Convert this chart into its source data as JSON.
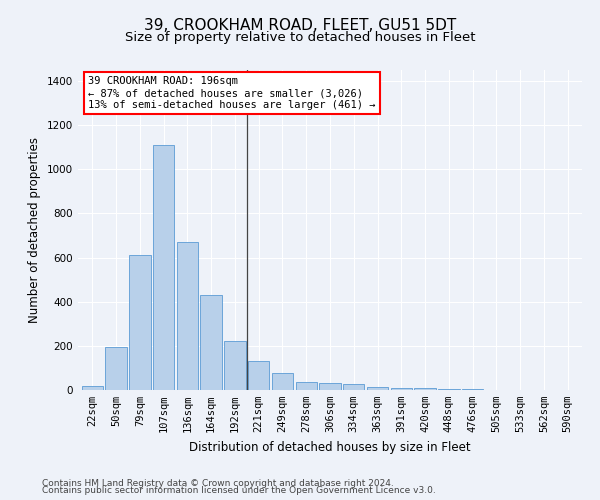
{
  "title": "39, CROOKHAM ROAD, FLEET, GU51 5DT",
  "subtitle": "Size of property relative to detached houses in Fleet",
  "xlabel": "Distribution of detached houses by size in Fleet",
  "ylabel": "Number of detached properties",
  "categories": [
    "22sqm",
    "50sqm",
    "79sqm",
    "107sqm",
    "136sqm",
    "164sqm",
    "192sqm",
    "221sqm",
    "249sqm",
    "278sqm",
    "306sqm",
    "334sqm",
    "363sqm",
    "391sqm",
    "420sqm",
    "448sqm",
    "476sqm",
    "505sqm",
    "533sqm",
    "562sqm",
    "590sqm"
  ],
  "values": [
    18,
    195,
    610,
    1110,
    670,
    430,
    220,
    130,
    75,
    35,
    30,
    25,
    15,
    10,
    8,
    5,
    3,
    2,
    1,
    1,
    1
  ],
  "bar_color": "#b8d0ea",
  "bar_edge_color": "#5b9bd5",
  "vline_x_pos": 6.5,
  "vline_color": "#444444",
  "annotation_text": "39 CROOKHAM ROAD: 196sqm\n← 87% of detached houses are smaller (3,026)\n13% of semi-detached houses are larger (461) →",
  "annotation_box_color": "white",
  "annotation_box_edge_color": "red",
  "ylim": [
    0,
    1450
  ],
  "yticks": [
    0,
    200,
    400,
    600,
    800,
    1000,
    1200,
    1400
  ],
  "footer_line1": "Contains HM Land Registry data © Crown copyright and database right 2024.",
  "footer_line2": "Contains public sector information licensed under the Open Government Licence v3.0.",
  "background_color": "#eef2f9",
  "grid_color": "white",
  "title_fontsize": 11,
  "subtitle_fontsize": 9.5,
  "axis_label_fontsize": 8.5,
  "tick_fontsize": 7.5,
  "footer_fontsize": 6.5,
  "figwidth": 6.0,
  "figheight": 5.0,
  "dpi": 100
}
